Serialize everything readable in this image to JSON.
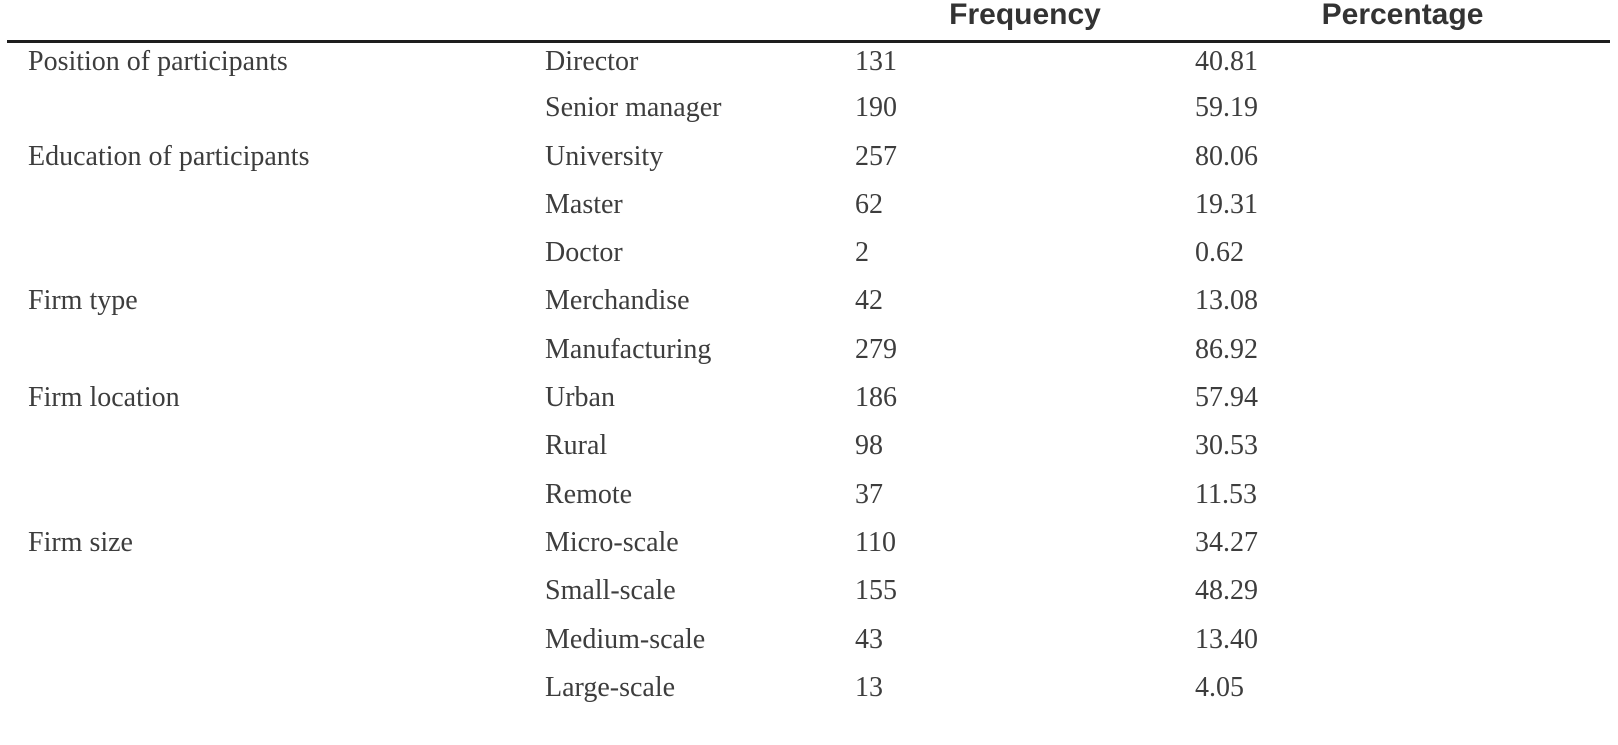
{
  "table": {
    "headers": {
      "category": "",
      "subcategory": "",
      "frequency": "Frequency",
      "percentage": "Percentage"
    },
    "groups": [
      {
        "category": "Position of participants",
        "rows": [
          {
            "label": "Director",
            "frequency": "131",
            "percentage": "40.81"
          },
          {
            "label": "Senior manager",
            "frequency": "190",
            "percentage": "59.19"
          }
        ]
      },
      {
        "category": "Education of participants",
        "rows": [
          {
            "label": "University",
            "frequency": "257",
            "percentage": "80.06"
          },
          {
            "label": "Master",
            "frequency": "62",
            "percentage": "19.31"
          },
          {
            "label": "Doctor",
            "frequency": "2",
            "percentage": "0.62"
          }
        ]
      },
      {
        "category": "Firm type",
        "rows": [
          {
            "label": "Merchandise",
            "frequency": "42",
            "percentage": "13.08"
          },
          {
            "label": "Manufacturing",
            "frequency": "279",
            "percentage": "86.92"
          }
        ]
      },
      {
        "category": "Firm location",
        "rows": [
          {
            "label": "Urban",
            "frequency": "186",
            "percentage": "57.94"
          },
          {
            "label": "Rural",
            "frequency": "98",
            "percentage": "30.53"
          },
          {
            "label": "Remote",
            "frequency": "37",
            "percentage": "11.53"
          }
        ]
      },
      {
        "category": "Firm size",
        "rows": [
          {
            "label": "Micro-scale",
            "frequency": "110",
            "percentage": "34.27"
          },
          {
            "label": "Small-scale",
            "frequency": "155",
            "percentage": "48.29"
          },
          {
            "label": "Medium-scale",
            "frequency": "43",
            "percentage": "13.40"
          },
          {
            "label": "Large-scale",
            "frequency": "13",
            "percentage": "4.05"
          }
        ]
      }
    ]
  },
  "colors": {
    "background": "#ffffff",
    "body_text": "#3d3d3d",
    "header_text": "#333333",
    "rule_line": "#1e1e1e"
  }
}
